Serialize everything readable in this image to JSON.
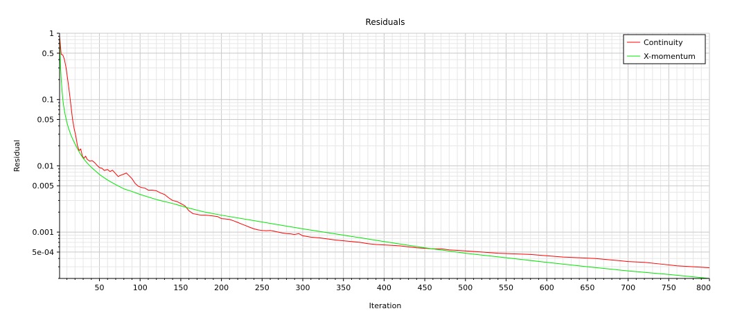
{
  "chart_data": {
    "type": "line",
    "title": "Residuals",
    "xlabel": "Iteration",
    "ylabel": "Residual",
    "x_scale": "linear",
    "y_scale": "log",
    "xlim": [
      1,
      800
    ],
    "ylim": [
      0.0002,
      1
    ],
    "grid": true,
    "legend_position": "top-right",
    "x_ticks": [
      {
        "value": 50,
        "label": "50"
      },
      {
        "value": 100,
        "label": "100"
      },
      {
        "value": 150,
        "label": "150"
      },
      {
        "value": 200,
        "label": "200"
      },
      {
        "value": 250,
        "label": "250"
      },
      {
        "value": 300,
        "label": "300"
      },
      {
        "value": 350,
        "label": "350"
      },
      {
        "value": 400,
        "label": "400"
      },
      {
        "value": 450,
        "label": "450"
      },
      {
        "value": 500,
        "label": "500"
      },
      {
        "value": 550,
        "label": "550"
      },
      {
        "value": 600,
        "label": "600"
      },
      {
        "value": 650,
        "label": "650"
      },
      {
        "value": 700,
        "label": "700"
      },
      {
        "value": 750,
        "label": "750"
      },
      {
        "value": 800,
        "label": "800"
      }
    ],
    "y_ticks": [
      {
        "value": 1,
        "label": "1"
      },
      {
        "value": 0.5,
        "label": "0.5"
      },
      {
        "value": 0.1,
        "label": "0.1"
      },
      {
        "value": 0.05,
        "label": "0.05"
      },
      {
        "value": 0.01,
        "label": "0.01"
      },
      {
        "value": 0.005,
        "label": "0.005"
      },
      {
        "value": 0.001,
        "label": "0.001"
      },
      {
        "value": 0.0005,
        "label": "5e-04"
      }
    ],
    "series": [
      {
        "name": "Continuity",
        "color": "#ff0000",
        "points": [
          [
            1,
            0.9
          ],
          [
            3,
            0.48
          ],
          [
            5,
            0.47
          ],
          [
            7,
            0.4
          ],
          [
            9,
            0.3
          ],
          [
            11,
            0.2
          ],
          [
            13,
            0.13
          ],
          [
            15,
            0.08
          ],
          [
            17,
            0.05
          ],
          [
            19,
            0.036
          ],
          [
            21,
            0.028
          ],
          [
            23,
            0.02
          ],
          [
            25,
            0.017
          ],
          [
            27,
            0.018
          ],
          [
            29,
            0.014
          ],
          [
            31,
            0.013
          ],
          [
            33,
            0.014
          ],
          [
            35,
            0.0125
          ],
          [
            38,
            0.0118
          ],
          [
            41,
            0.012
          ],
          [
            44,
            0.0112
          ],
          [
            47,
            0.0102
          ],
          [
            50,
            0.0094
          ],
          [
            53,
            0.0092
          ],
          [
            56,
            0.0085
          ],
          [
            60,
            0.0088
          ],
          [
            63,
            0.0082
          ],
          [
            66,
            0.0086
          ],
          [
            70,
            0.0076
          ],
          [
            73,
            0.0069
          ],
          [
            76,
            0.0072
          ],
          [
            80,
            0.0075
          ],
          [
            83,
            0.0078
          ],
          [
            86,
            0.0072
          ],
          [
            90,
            0.0064
          ],
          [
            94,
            0.0054
          ],
          [
            98,
            0.0049
          ],
          [
            102,
            0.0047
          ],
          [
            106,
            0.0046
          ],
          [
            110,
            0.0043
          ],
          [
            115,
            0.0043
          ],
          [
            120,
            0.0042
          ],
          [
            125,
            0.0039
          ],
          [
            130,
            0.0037
          ],
          [
            135,
            0.0033
          ],
          [
            140,
            0.003
          ],
          [
            145,
            0.0029
          ],
          [
            150,
            0.0027
          ],
          [
            155,
            0.0025
          ],
          [
            160,
            0.0021
          ],
          [
            165,
            0.0019
          ],
          [
            170,
            0.00185
          ],
          [
            175,
            0.0018
          ],
          [
            180,
            0.0018
          ],
          [
            185,
            0.00178
          ],
          [
            190,
            0.00175
          ],
          [
            195,
            0.00172
          ],
          [
            200,
            0.0016
          ],
          [
            205,
            0.00158
          ],
          [
            210,
            0.00155
          ],
          [
            215,
            0.00148
          ],
          [
            220,
            0.0014
          ],
          [
            225,
            0.00132
          ],
          [
            230,
            0.00125
          ],
          [
            235,
            0.00118
          ],
          [
            240,
            0.00112
          ],
          [
            245,
            0.00108
          ],
          [
            250,
            0.00106
          ],
          [
            255,
            0.00105
          ],
          [
            260,
            0.00106
          ],
          [
            265,
            0.00103
          ],
          [
            270,
            0.001
          ],
          [
            275,
            0.00097
          ],
          [
            280,
            0.00095
          ],
          [
            285,
            0.00094
          ],
          [
            290,
            0.00092
          ],
          [
            295,
            0.00095
          ],
          [
            300,
            0.00088
          ],
          [
            310,
            0.00084
          ],
          [
            320,
            0.00082
          ],
          [
            330,
            0.00079
          ],
          [
            340,
            0.00076
          ],
          [
            350,
            0.00074
          ],
          [
            360,
            0.00072
          ],
          [
            370,
            0.0007
          ],
          [
            380,
            0.00067
          ],
          [
            390,
            0.00065
          ],
          [
            400,
            0.00064
          ],
          [
            410,
            0.00063
          ],
          [
            420,
            0.00062
          ],
          [
            430,
            0.0006
          ],
          [
            440,
            0.00058
          ],
          [
            450,
            0.00057
          ],
          [
            460,
            0.00056
          ],
          [
            470,
            0.00056
          ],
          [
            480,
            0.00054
          ],
          [
            490,
            0.00053
          ],
          [
            500,
            0.00052
          ],
          [
            520,
            0.0005
          ],
          [
            540,
            0.00048
          ],
          [
            560,
            0.00047
          ],
          [
            580,
            0.00046
          ],
          [
            600,
            0.00044
          ],
          [
            620,
            0.00042
          ],
          [
            640,
            0.00041
          ],
          [
            660,
            0.0004
          ],
          [
            680,
            0.00038
          ],
          [
            700,
            0.00036
          ],
          [
            720,
            0.00035
          ],
          [
            740,
            0.00033
          ],
          [
            760,
            0.00031
          ],
          [
            780,
            0.0003
          ],
          [
            800,
            0.00029
          ]
        ]
      },
      {
        "name": "X-momentum",
        "color": "#00e600",
        "points": [
          [
            1,
            0.8
          ],
          [
            2,
            0.35
          ],
          [
            3,
            0.2
          ],
          [
            4,
            0.14
          ],
          [
            5,
            0.1
          ],
          [
            6,
            0.08
          ],
          [
            8,
            0.058
          ],
          [
            10,
            0.045
          ],
          [
            12,
            0.037
          ],
          [
            15,
            0.029
          ],
          [
            18,
            0.024
          ],
          [
            22,
            0.019
          ],
          [
            26,
            0.0155
          ],
          [
            30,
            0.013
          ],
          [
            35,
            0.011
          ],
          [
            40,
            0.0095
          ],
          [
            50,
            0.0074
          ],
          [
            60,
            0.0061
          ],
          [
            70,
            0.0052
          ],
          [
            80,
            0.0045
          ],
          [
            90,
            0.0041
          ],
          [
            100,
            0.0037
          ],
          [
            120,
            0.0031
          ],
          [
            140,
            0.0027
          ],
          [
            160,
            0.0023
          ],
          [
            180,
            0.002
          ],
          [
            200,
            0.0018
          ],
          [
            250,
            0.00142
          ],
          [
            300,
            0.00112
          ],
          [
            350,
            0.0009
          ],
          [
            400,
            0.00072
          ],
          [
            450,
            0.00058
          ],
          [
            500,
            0.00048
          ],
          [
            550,
            0.00041
          ],
          [
            600,
            0.00035
          ],
          [
            650,
            0.0003
          ],
          [
            700,
            0.00026
          ],
          [
            750,
            0.00023
          ],
          [
            800,
            0.0002
          ]
        ]
      }
    ]
  }
}
